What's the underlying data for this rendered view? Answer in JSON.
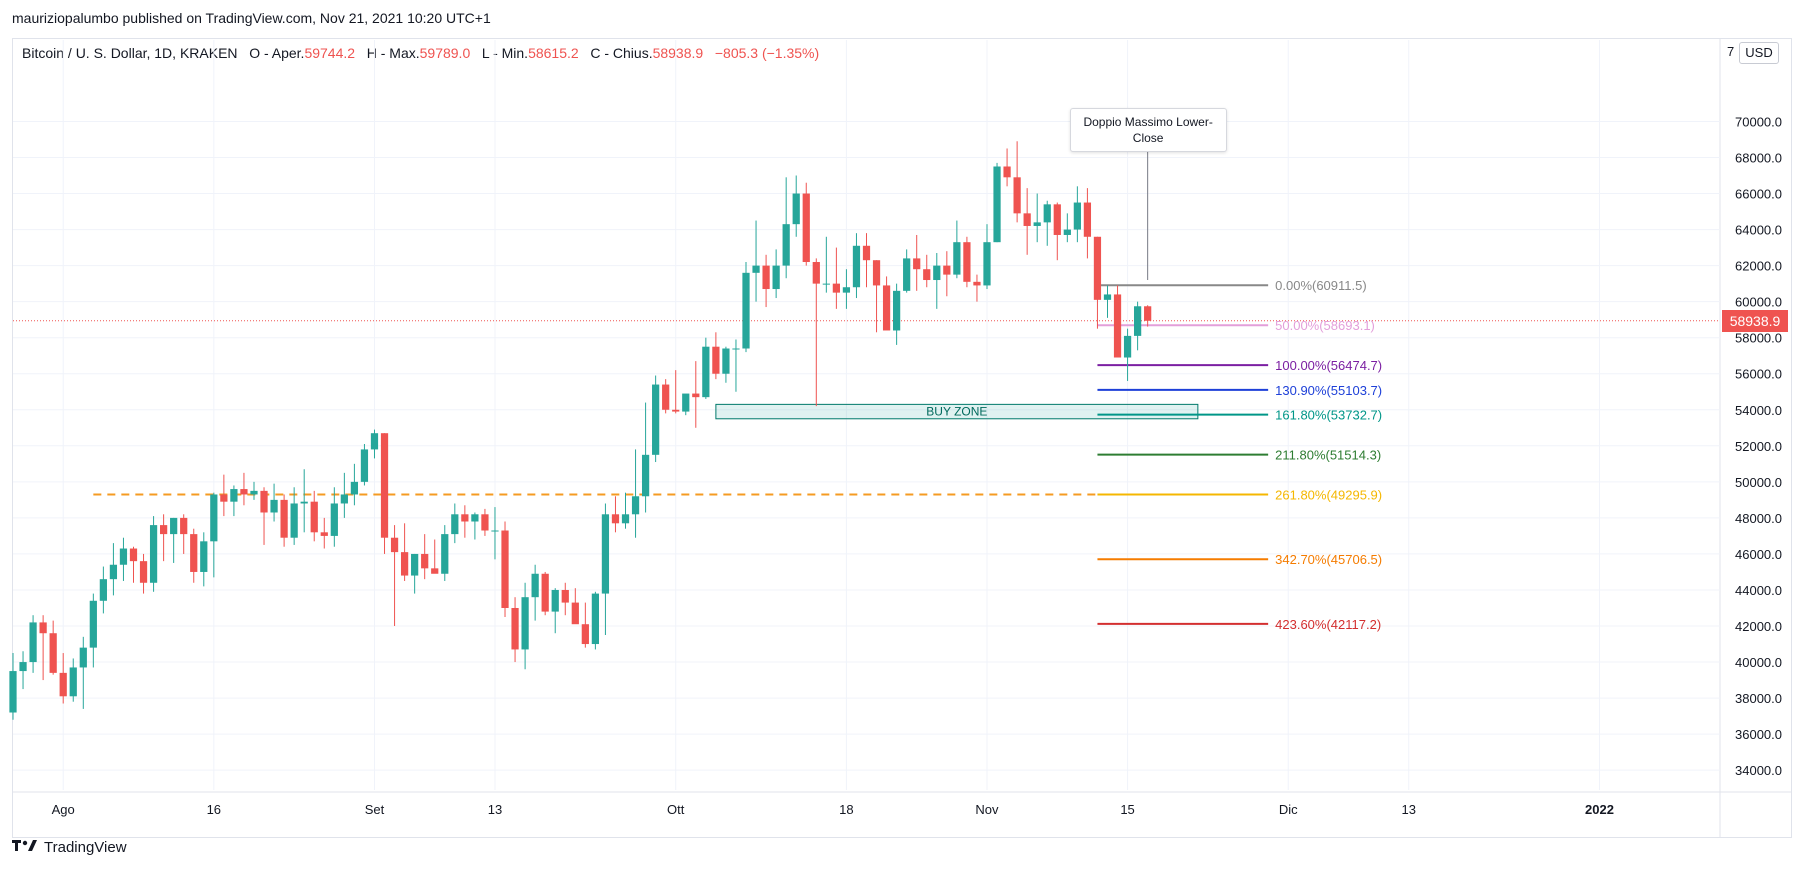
{
  "header": {
    "published": "mauriziopalumbo published on TradingView.com, Nov 21, 2021 10:20 UTC+1"
  },
  "legend": {
    "symbol": "Bitcoin / U. S. Dollar, 1D, KRAKEN",
    "open_label": "O - Aper.",
    "open": "59744.2",
    "high_label": "H - Max.",
    "high": "59789.0",
    "low_label": "L - Min.",
    "low": "58615.2",
    "close_label": "C - Chius.",
    "close": "58938.9",
    "change": "−805.3 (−1.35%)"
  },
  "colors": {
    "up": "#26a69a",
    "down": "#ef5350",
    "resistance": "#f59b22"
  },
  "price_axis": {
    "currency": "USD",
    "top_label": "7",
    "last_price": "58938.9"
  },
  "annotation": {
    "text_line1": "Doppio Massimo Lower-",
    "text_line2": "Close"
  },
  "buy_zone": {
    "label": "BUY ZONE",
    "low": 53500,
    "high": 54300
  },
  "footer": {
    "brand": "TradingView"
  },
  "chart_data": {
    "type": "candlestick",
    "y_ticks": [
      34000,
      36000,
      38000,
      40000,
      42000,
      44000,
      46000,
      48000,
      50000,
      52000,
      54000,
      56000,
      58000,
      60000,
      62000,
      64000,
      66000,
      68000,
      70000
    ],
    "ylim": [
      32900,
      72300
    ],
    "x_ticks": [
      {
        "label": "Ago",
        "date": "2021-08-01"
      },
      {
        "label": "16",
        "date": "2021-08-16"
      },
      {
        "label": "Set",
        "date": "2021-09-01"
      },
      {
        "label": "13",
        "date": "2021-09-13"
      },
      {
        "label": "Ott",
        "date": "2021-10-01"
      },
      {
        "label": "18",
        "date": "2021-10-18"
      },
      {
        "label": "Nov",
        "date": "2021-11-01"
      },
      {
        "label": "15",
        "date": "2021-11-15"
      },
      {
        "label": "Dic",
        "date": "2021-12-01"
      },
      {
        "label": "13",
        "date": "2021-12-13"
      },
      {
        "label": "2022",
        "date": "2022-01-01"
      }
    ],
    "xlim": [
      "2021-07-27",
      "2022-01-13"
    ],
    "resistance_level": 49300,
    "fib_levels": [
      {
        "label": "0.00%(60911.5)",
        "value": 60911.5,
        "color": "#888888"
      },
      {
        "label": "50.00%(58693.1)",
        "value": 58693.1,
        "color": "#e39fda"
      },
      {
        "label": "100.00%(56474.7)",
        "value": 56474.7,
        "color": "#7b1fa2"
      },
      {
        "label": "130.90%(55103.7)",
        "value": 55103.7,
        "color": "#1e40d8"
      },
      {
        "label": "161.80%(53732.7)",
        "value": 53732.7,
        "color": "#009688"
      },
      {
        "label": "211.80%(51514.3)",
        "value": 51514.3,
        "color": "#2e7d32"
      },
      {
        "label": "261.80%(49295.9)",
        "value": 49295.9,
        "color": "#f5b700"
      },
      {
        "label": "342.70%(45706.5)",
        "value": 45706.5,
        "color": "#f57c00"
      },
      {
        "label": "423.60%(42117.2)",
        "value": 42117.2,
        "color": "#d32f2f"
      }
    ],
    "fib_start": "2021-11-12",
    "fib_end": "2021-11-29",
    "candles": {
      "start": "2021-07-27",
      "o": [
        37200,
        39500,
        40000,
        42200,
        41600,
        39400,
        38100,
        39700,
        40800,
        43400,
        44600,
        45400,
        46300,
        45600,
        44400,
        47600,
        47100,
        48000,
        47100,
        45000,
        46700,
        49300,
        48900,
        49600,
        49300,
        49500,
        48300,
        49000,
        46900,
        48800,
        48900,
        47200,
        47000,
        48800,
        49300,
        50000,
        51800,
        52700,
        46900,
        46100,
        44800,
        46000,
        45200,
        44900,
        47100,
        48200,
        47800,
        48200,
        47300,
        47300,
        43000,
        40700,
        43600,
        44900,
        42800,
        44000,
        43300,
        42100,
        41000,
        43800,
        48200,
        47700,
        48200,
        49200,
        51500,
        55400,
        54000,
        53900,
        54900,
        54700,
        57500,
        56000,
        57400,
        57400,
        61600,
        62000,
        60700,
        62000,
        64300,
        66000,
        62200,
        61000,
        61000,
        60500,
        60800,
        63100,
        62300,
        60900,
        58400,
        60600,
        62400,
        61800,
        61200,
        62000,
        61500,
        63300,
        61100,
        60900,
        63300,
        67500,
        66900,
        64900,
        64200,
        64400,
        65400,
        63700,
        64000,
        65500,
        63600,
        60100,
        60400,
        56900,
        58100,
        59744
      ],
      "h": [
        40500,
        40600,
        42600,
        42600,
        42300,
        40500,
        40200,
        41400,
        43800,
        45300,
        46600,
        46900,
        46400,
        46000,
        48100,
        48200,
        48000,
        48200,
        47400,
        47200,
        49400,
        50400,
        49800,
        50500,
        50000,
        49700,
        49900,
        49300,
        49700,
        50700,
        49500,
        48000,
        49700,
        50500,
        51000,
        52100,
        52900,
        52700,
        47600,
        47700,
        46000,
        47100,
        46800,
        47600,
        48800,
        48700,
        48300,
        48500,
        48600,
        47800,
        43600,
        44400,
        45400,
        45000,
        44100,
        44400,
        44100,
        43300,
        43900,
        48800,
        49200,
        49400,
        51800,
        54400,
        55900,
        55700,
        56200,
        54600,
        56700,
        58000,
        58300,
        57500,
        57900,
        62200,
        64500,
        62600,
        62900,
        66900,
        67000,
        66600,
        62400,
        63600,
        63000,
        61800,
        63800,
        63800,
        62300,
        61400,
        61000,
        62900,
        63700,
        62600,
        62700,
        62800,
        64500,
        63600,
        61500,
        64300,
        67700,
        68500,
        68900,
        66300,
        66000,
        65600,
        65500,
        64900,
        66400,
        66300,
        63600,
        60900,
        60900,
        58500,
        60000,
        59800
      ],
      "l": [
        36800,
        38500,
        39400,
        39000,
        39300,
        37700,
        37800,
        37400,
        39700,
        42700,
        43700,
        44500,
        44400,
        43800,
        43900,
        45600,
        45500,
        46000,
        44400,
        44200,
        44700,
        48100,
        48100,
        48700,
        49000,
        46500,
        47800,
        46400,
        46500,
        47200,
        46700,
        46300,
        46400,
        48000,
        48700,
        49800,
        51300,
        46000,
        42000,
        44500,
        43800,
        44600,
        45000,
        44500,
        46600,
        46900,
        46800,
        47000,
        45700,
        42500,
        40000,
        39600,
        42300,
        42600,
        41600,
        42600,
        42700,
        40800,
        40700,
        41500,
        47200,
        47400,
        46900,
        48300,
        51100,
        53800,
        53800,
        53700,
        53000,
        54600,
        55700,
        55500,
        55000,
        57200,
        60000,
        59700,
        60200,
        61300,
        63600,
        62000,
        54200,
        60500,
        59600,
        59600,
        60200,
        60800,
        58300,
        58700,
        57600,
        60500,
        60600,
        60800,
        59600,
        60300,
        61300,
        60800,
        60000,
        60700,
        63300,
        66400,
        64400,
        62600,
        63300,
        63100,
        62300,
        63300,
        63300,
        62400,
        58500,
        59100,
        58200,
        55600,
        57300,
        58615
      ],
      "c": [
        39500,
        40000,
        42200,
        41600,
        39400,
        38100,
        39700,
        40800,
        43400,
        44600,
        45400,
        46300,
        45600,
        44400,
        47600,
        47100,
        48000,
        47100,
        45000,
        46700,
        49300,
        48900,
        49600,
        49300,
        49500,
        48300,
        49000,
        46900,
        48800,
        48900,
        47200,
        47000,
        48800,
        49300,
        50000,
        51800,
        52700,
        46900,
        46100,
        44800,
        46000,
        45200,
        44900,
        47100,
        48200,
        47800,
        48200,
        47300,
        47300,
        43000,
        40700,
        43600,
        44900,
        42800,
        44000,
        43300,
        42100,
        41000,
        43800,
        48200,
        47700,
        48200,
        49200,
        51500,
        55400,
        54000,
        53900,
        54900,
        54700,
        57500,
        56000,
        57400,
        57400,
        61600,
        62000,
        60700,
        62000,
        64300,
        66000,
        62200,
        61000,
        61000,
        60500,
        60800,
        63100,
        62300,
        60900,
        58400,
        60600,
        62400,
        61800,
        61200,
        62000,
        61500,
        63300,
        61100,
        60900,
        63300,
        67500,
        66900,
        64900,
        64200,
        64400,
        65400,
        63700,
        64000,
        65500,
        63600,
        60100,
        60400,
        56900,
        58100,
        59744,
        58938
      ]
    }
  }
}
